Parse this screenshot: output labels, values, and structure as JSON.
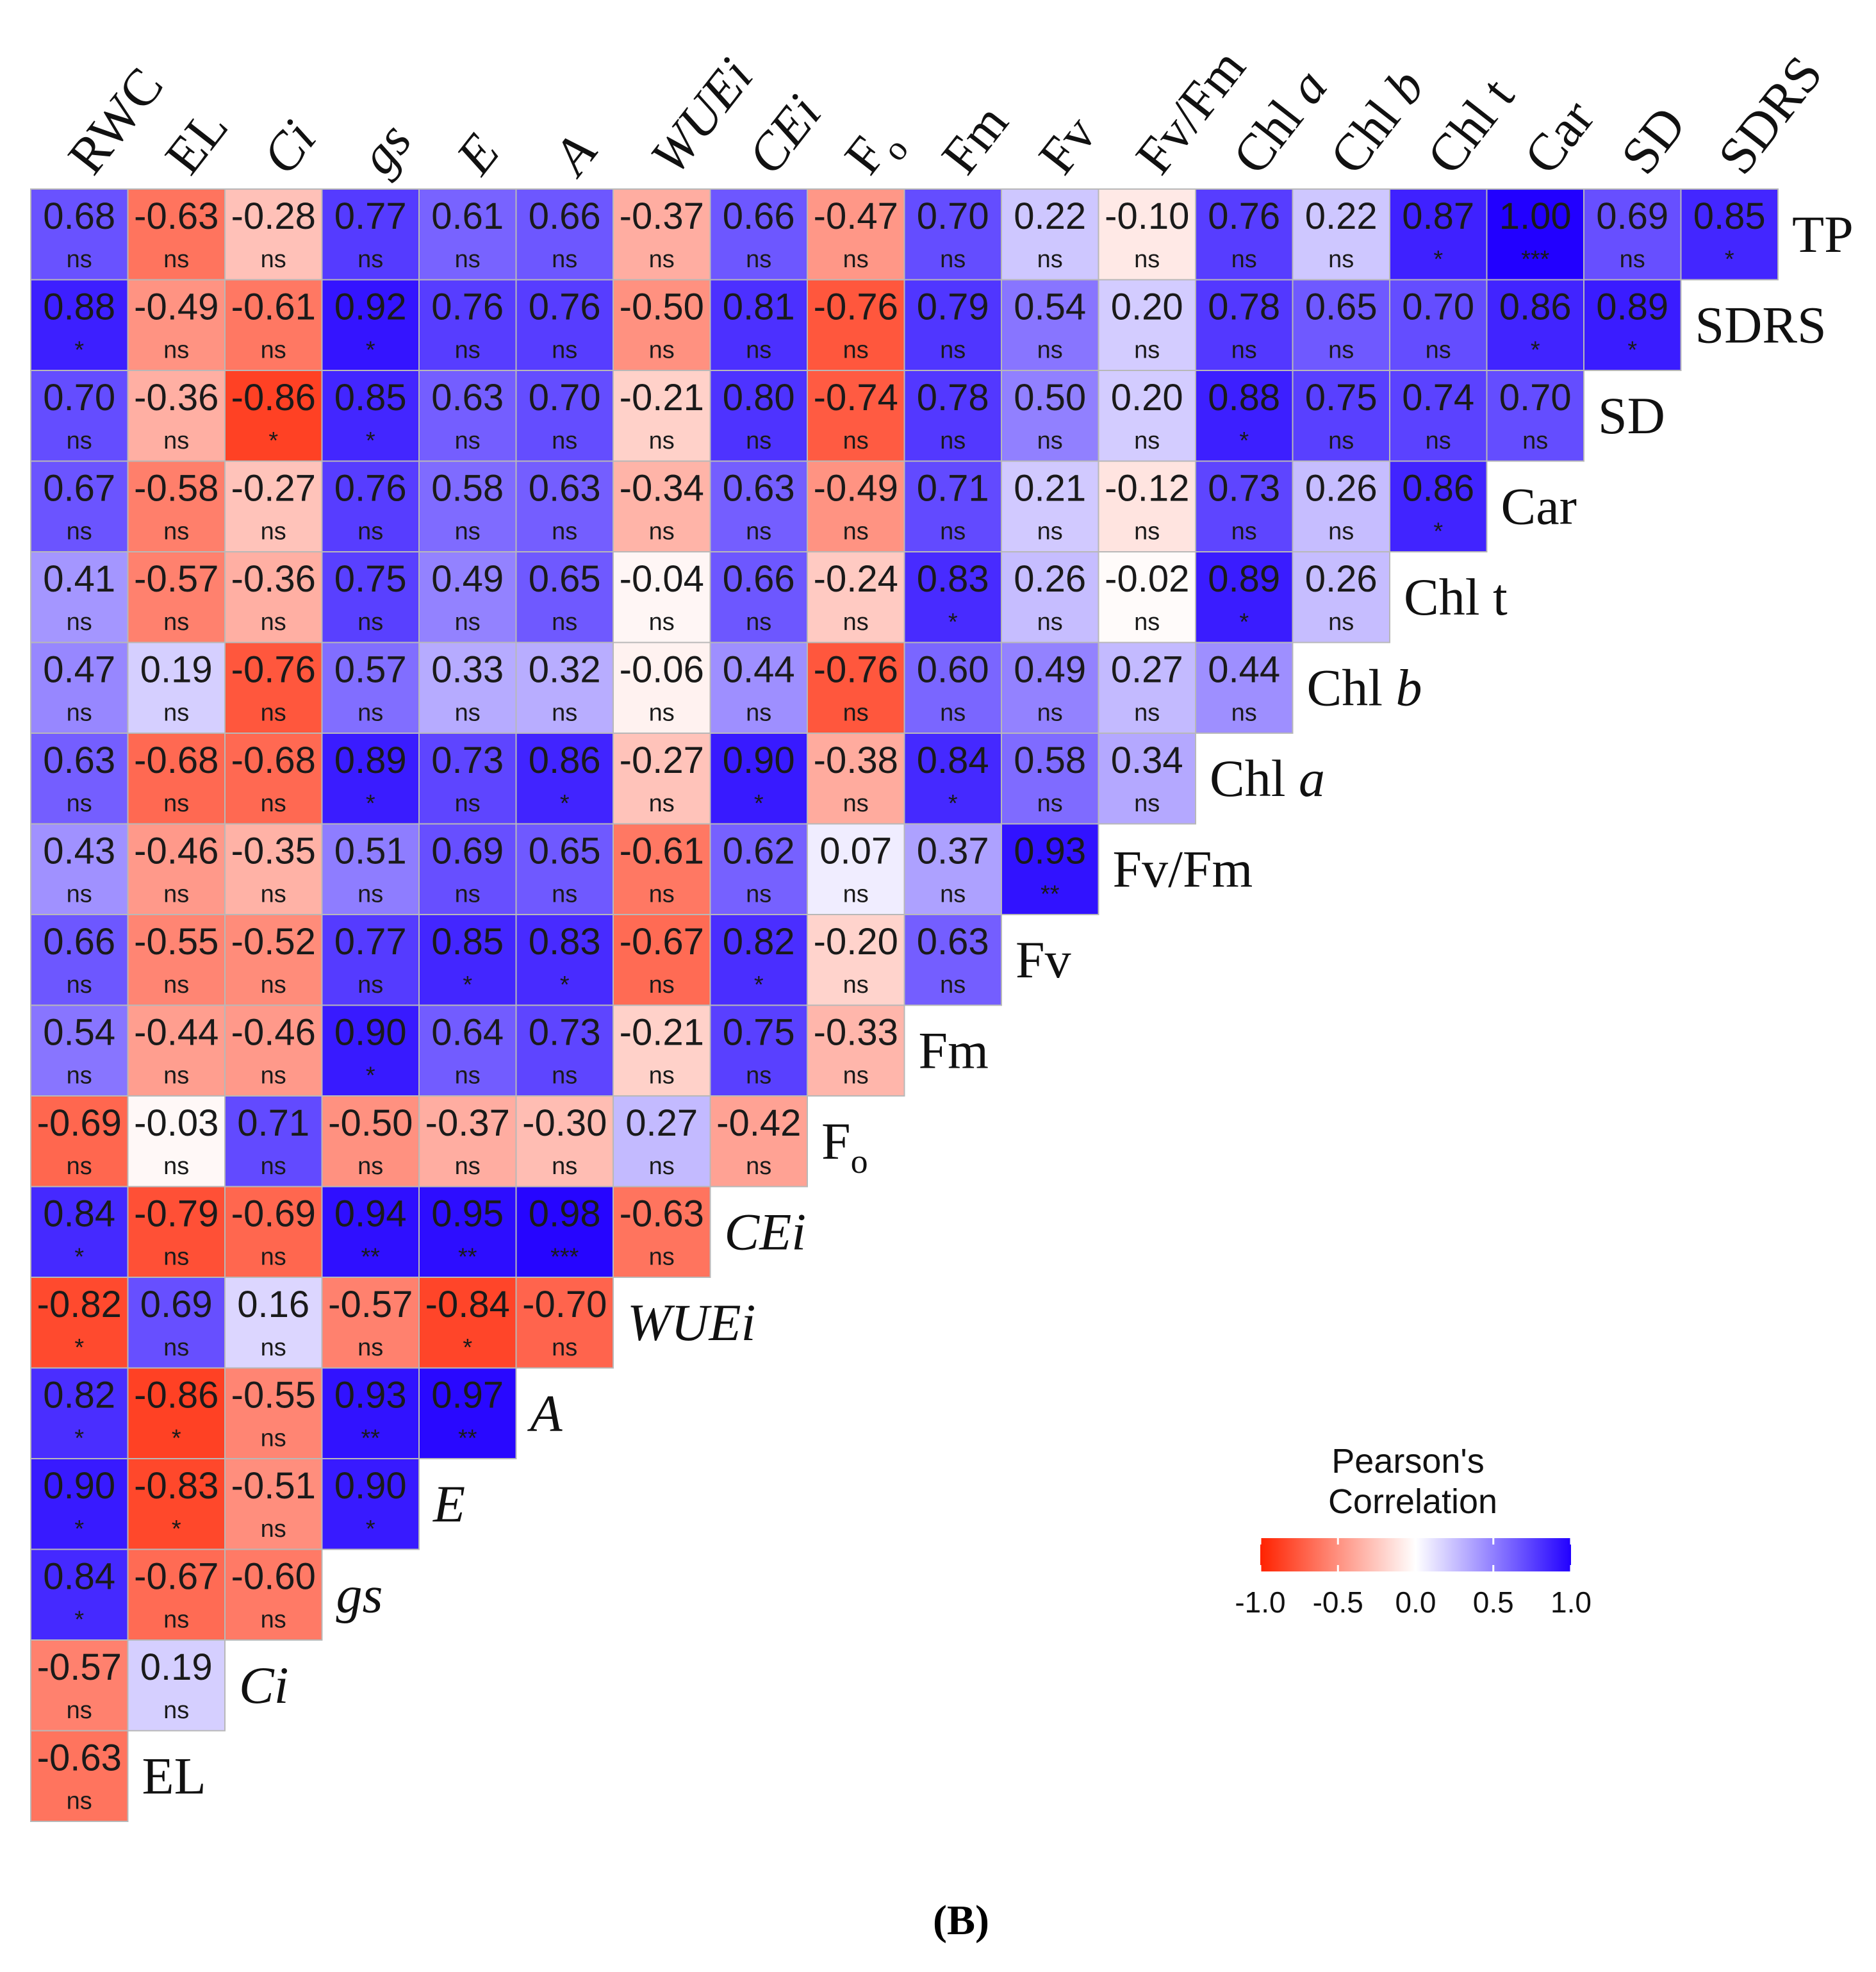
{
  "chart_data": {
    "type": "heatmap",
    "subtype": "lower-triangular correlation matrix",
    "columns": [
      {
        "name": "RWC"
      },
      {
        "name": "EL"
      },
      {
        "name": "Ci",
        "italic": true
      },
      {
        "name": "gs",
        "italic": true
      },
      {
        "name": "E",
        "italic": true
      },
      {
        "name": "A",
        "italic": true
      },
      {
        "name": "WUEi",
        "italic": true
      },
      {
        "name": "CEi",
        "italic": true
      },
      {
        "name": "Fo",
        "base": "F",
        "sub": "o"
      },
      {
        "name": "Fm"
      },
      {
        "name": "Fv"
      },
      {
        "name": "Fv/Fm"
      },
      {
        "name": "Chl a",
        "base": "Chl ",
        "ital": "a"
      },
      {
        "name": "Chl b",
        "base": "Chl ",
        "ital": "b"
      },
      {
        "name": "Chl t"
      },
      {
        "name": "Car"
      },
      {
        "name": "SD"
      },
      {
        "name": "SDRS"
      }
    ],
    "rows": [
      {
        "label": {
          "name": "TP"
        },
        "values": [
          0.68,
          -0.63,
          -0.28,
          0.77,
          0.61,
          0.66,
          -0.37,
          0.66,
          -0.47,
          0.7,
          0.22,
          -0.1,
          0.76,
          0.22,
          0.87,
          1.0,
          0.69,
          0.85
        ],
        "sig": [
          "ns",
          "ns",
          "ns",
          "ns",
          "ns",
          "ns",
          "ns",
          "ns",
          "ns",
          "ns",
          "ns",
          "ns",
          "ns",
          "ns",
          "*",
          "***",
          "ns",
          "*"
        ]
      },
      {
        "label": {
          "name": "SDRS"
        },
        "values": [
          0.88,
          -0.49,
          -0.61,
          0.92,
          0.76,
          0.76,
          -0.5,
          0.81,
          -0.76,
          0.79,
          0.54,
          0.2,
          0.78,
          0.65,
          0.7,
          0.86,
          0.89
        ],
        "sig": [
          "*",
          "ns",
          "ns",
          "*",
          "ns",
          "ns",
          "ns",
          "ns",
          "ns",
          "ns",
          "ns",
          "ns",
          "ns",
          "ns",
          "ns",
          "*",
          "*"
        ]
      },
      {
        "label": {
          "name": "SD"
        },
        "values": [
          0.7,
          -0.36,
          -0.86,
          0.85,
          0.63,
          0.7,
          -0.21,
          0.8,
          -0.74,
          0.78,
          0.5,
          0.2,
          0.88,
          0.75,
          0.74,
          0.7
        ],
        "sig": [
          "ns",
          "ns",
          "*",
          "*",
          "ns",
          "ns",
          "ns",
          "ns",
          "ns",
          "ns",
          "ns",
          "ns",
          "*",
          "ns",
          "ns",
          "ns"
        ]
      },
      {
        "label": {
          "name": "Car"
        },
        "values": [
          0.67,
          -0.58,
          -0.27,
          0.76,
          0.58,
          0.63,
          -0.34,
          0.63,
          -0.49,
          0.71,
          0.21,
          -0.12,
          0.73,
          0.26,
          0.86
        ],
        "sig": [
          "ns",
          "ns",
          "ns",
          "ns",
          "ns",
          "ns",
          "ns",
          "ns",
          "ns",
          "ns",
          "ns",
          "ns",
          "ns",
          "ns",
          "*"
        ]
      },
      {
        "label": {
          "name": "Chl t"
        },
        "values": [
          0.41,
          -0.57,
          -0.36,
          0.75,
          0.49,
          0.65,
          -0.04,
          0.66,
          -0.24,
          0.83,
          0.26,
          -0.02,
          0.89,
          0.26
        ],
        "sig": [
          "ns",
          "ns",
          "ns",
          "ns",
          "ns",
          "ns",
          "ns",
          "ns",
          "ns",
          "*",
          "ns",
          "ns",
          "*",
          "ns"
        ]
      },
      {
        "label": {
          "name": "Chl b",
          "base": "Chl ",
          "ital": "b"
        },
        "values": [
          0.47,
          0.19,
          -0.76,
          0.57,
          0.33,
          0.32,
          -0.06,
          0.44,
          -0.76,
          0.6,
          0.49,
          0.27,
          0.44
        ],
        "sig": [
          "ns",
          "ns",
          "ns",
          "ns",
          "ns",
          "ns",
          "ns",
          "ns",
          "ns",
          "ns",
          "ns",
          "ns",
          "ns"
        ]
      },
      {
        "label": {
          "name": "Chl a",
          "base": "Chl ",
          "ital": "a"
        },
        "values": [
          0.63,
          -0.68,
          -0.68,
          0.89,
          0.73,
          0.86,
          -0.27,
          0.9,
          -0.38,
          0.84,
          0.58,
          0.34
        ],
        "sig": [
          "ns",
          "ns",
          "ns",
          "*",
          "ns",
          "*",
          "ns",
          "*",
          "ns",
          "*",
          "ns",
          "ns"
        ]
      },
      {
        "label": {
          "name": "Fv/Fm"
        },
        "values": [
          0.43,
          -0.46,
          -0.35,
          0.51,
          0.69,
          0.65,
          -0.61,
          0.62,
          0.07,
          0.37,
          0.93
        ],
        "sig": [
          "ns",
          "ns",
          "ns",
          "ns",
          "ns",
          "ns",
          "ns",
          "ns",
          "ns",
          "ns",
          "**"
        ]
      },
      {
        "label": {
          "name": "Fv"
        },
        "values": [
          0.66,
          -0.55,
          -0.52,
          0.77,
          0.85,
          0.83,
          -0.67,
          0.82,
          -0.2,
          0.63
        ],
        "sig": [
          "ns",
          "ns",
          "ns",
          "ns",
          "*",
          "*",
          "ns",
          "*",
          "ns",
          "ns"
        ]
      },
      {
        "label": {
          "name": "Fm"
        },
        "values": [
          0.54,
          -0.44,
          -0.46,
          0.9,
          0.64,
          0.73,
          -0.21,
          0.75,
          -0.33
        ],
        "sig": [
          "ns",
          "ns",
          "ns",
          "*",
          "ns",
          "ns",
          "ns",
          "ns",
          "ns"
        ]
      },
      {
        "label": {
          "name": "Fo",
          "base": "F",
          "sub": "o"
        },
        "values": [
          -0.69,
          -0.03,
          0.71,
          -0.5,
          -0.37,
          -0.3,
          0.27,
          -0.42
        ],
        "sig": [
          "ns",
          "ns",
          "ns",
          "ns",
          "ns",
          "ns",
          "ns",
          "ns"
        ]
      },
      {
        "label": {
          "name": "CEi",
          "italic": true
        },
        "values": [
          0.84,
          -0.79,
          -0.69,
          0.94,
          0.95,
          0.98,
          -0.63
        ],
        "sig": [
          "*",
          "ns",
          "ns",
          "**",
          "**",
          "***",
          "ns"
        ]
      },
      {
        "label": {
          "name": "WUEi",
          "italic": true
        },
        "values": [
          -0.82,
          0.69,
          0.16,
          -0.57,
          -0.84,
          -0.7
        ],
        "sig": [
          "*",
          "ns",
          "ns",
          "ns",
          "*",
          "ns"
        ]
      },
      {
        "label": {
          "name": "A",
          "italic": true
        },
        "values": [
          0.82,
          -0.86,
          -0.55,
          0.93,
          0.97
        ],
        "sig": [
          "*",
          "*",
          "ns",
          "**",
          "**"
        ]
      },
      {
        "label": {
          "name": "E",
          "italic": true
        },
        "values": [
          0.9,
          -0.83,
          -0.51,
          0.9
        ],
        "sig": [
          "*",
          "*",
          "ns",
          "*"
        ]
      },
      {
        "label": {
          "name": "gs",
          "italic": true
        },
        "values": [
          0.84,
          -0.67,
          -0.6
        ],
        "sig": [
          "*",
          "ns",
          "ns"
        ]
      },
      {
        "label": {
          "name": "Ci",
          "italic": true
        },
        "values": [
          -0.57,
          0.19
        ],
        "sig": [
          "ns",
          "ns"
        ]
      },
      {
        "label": {
          "name": "EL"
        },
        "values": [
          -0.63
        ],
        "sig": [
          "ns"
        ]
      }
    ],
    "legend": {
      "title": "Pearson's Correlation",
      "title_lines": [
        "Pearson's",
        "Correlation"
      ],
      "ticks": [
        "-1.0",
        "-0.5",
        "0.0",
        "0.5",
        "1.0"
      ],
      "range": [
        -1.0,
        1.0
      ],
      "colors": {
        "low": "#ff2200",
        "mid": "#ffffff",
        "high": "#2200ff"
      },
      "placement": "bottom-right"
    },
    "caption": "(B)"
  }
}
